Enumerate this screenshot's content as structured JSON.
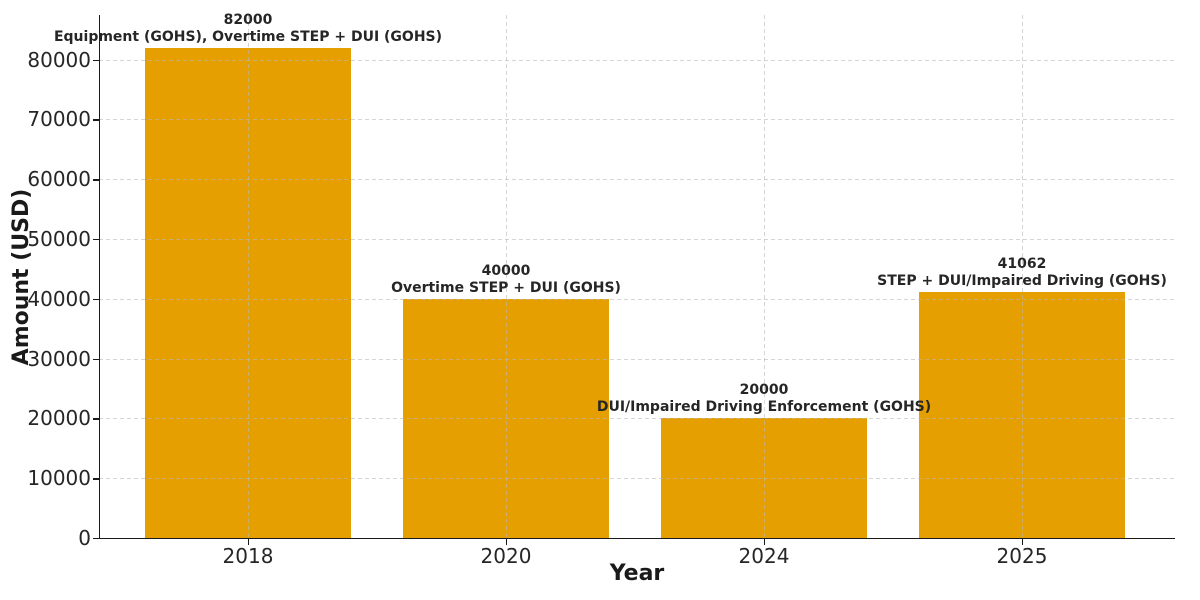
{
  "figure": {
    "background": "#ffffff"
  },
  "chart_data": {
    "type": "bar",
    "title": "",
    "xlabel": "Year",
    "ylabel": "Amount (USD)",
    "categories": [
      "2018",
      "2020",
      "2024",
      "2025"
    ],
    "values": [
      82000,
      40000,
      20000,
      41062
    ],
    "value_labels": [
      "82000",
      "40000",
      "20000",
      "41062"
    ],
    "bar_annotations": [
      "Equipment (GOHS), Overtime STEP + DUI (GOHS)",
      "Overtime STEP + DUI (GOHS)",
      "DUI/Impaired Driving Enforcement (GOHS)",
      "STEP + DUI/Impaired Driving (GOHS)"
    ],
    "yticks": [
      0,
      10000,
      20000,
      30000,
      40000,
      50000,
      60000,
      70000,
      80000
    ],
    "ylim": [
      0,
      87500
    ],
    "bar_color": "#E69F00",
    "grid": true,
    "grid_style": "dashed",
    "grid_color": "#c8c8c8",
    "legend": "none",
    "text_color": "#262626",
    "axis_color": "#1a1a1a"
  }
}
